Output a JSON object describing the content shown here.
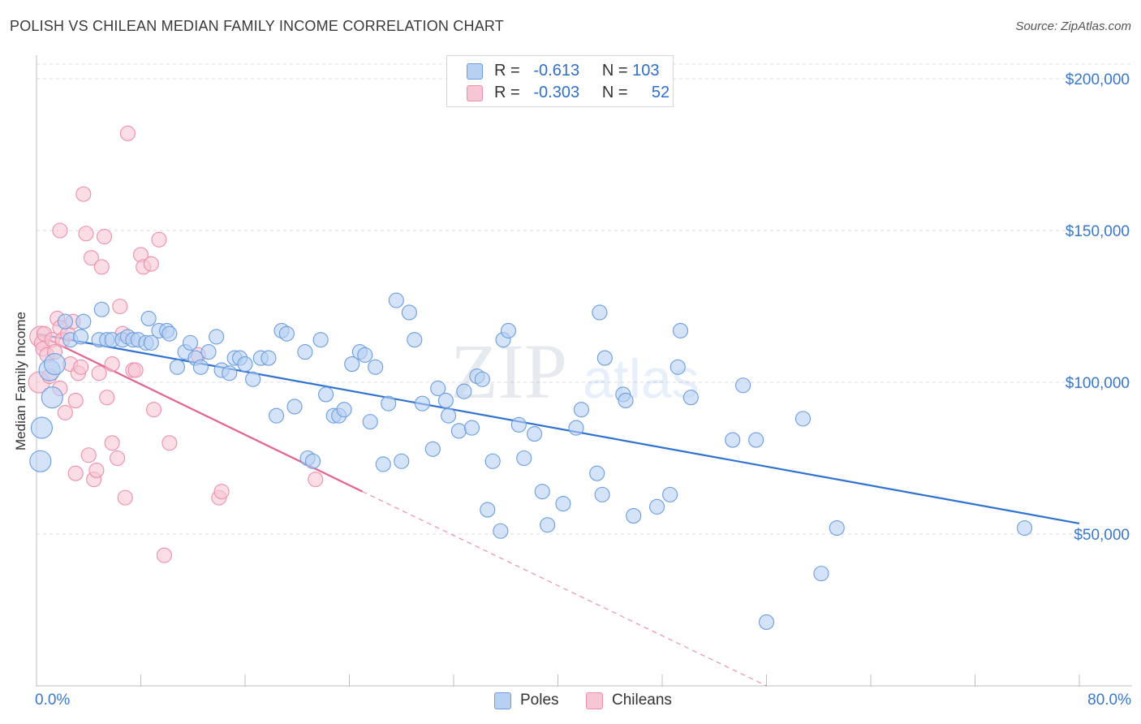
{
  "header": {
    "title": "POLISH VS CHILEAN MEDIAN FAMILY INCOME CORRELATION CHART",
    "source": "Source: ZipAtlas.com"
  },
  "legend": {
    "r_label": "R =",
    "n_label": "N =",
    "rows": [
      {
        "name": "Poles",
        "r": "-0.613",
        "n": "103"
      },
      {
        "name": "Chileans",
        "r": "-0.303",
        "n": "52"
      }
    ]
  },
  "colors": {
    "poles_fill": "#b8d1f3",
    "poles_stroke": "#6b9de0",
    "poles_line": "#2f72d0",
    "chileans_fill": "#f7c6d4",
    "chileans_stroke": "#ec8fab",
    "chileans_line": "#e2658f",
    "tick_text": "#3a78c9",
    "grid": "#dddddd"
  },
  "watermark": {
    "zip": "ZIP",
    "atlas": "atlas"
  },
  "chart_data": {
    "type": "scatter",
    "title": "POLISH VS CHILEAN MEDIAN FAMILY INCOME CORRELATION CHART",
    "xlabel": "",
    "ylabel": "Median Family Income",
    "x_unit": "%",
    "xlim": [
      0,
      80
    ],
    "ylim": [
      0,
      210000
    ],
    "x_ticks_labels": {
      "left": "0.0%",
      "right": "80.0%"
    },
    "y_ticks": [
      {
        "value": 50000,
        "label": "$50,000"
      },
      {
        "value": 100000,
        "label": "$100,000"
      },
      {
        "value": 150000,
        "label": "$150,000"
      },
      {
        "value": 200000,
        "label": "$200,000"
      }
    ],
    "series": [
      {
        "name": "Poles",
        "r": -0.613,
        "n": 103,
        "trend": {
          "x0": 0,
          "y0": 116000,
          "x1": 80,
          "y1": 53500
        },
        "points": [
          [
            0.3,
            74000
          ],
          [
            0.4,
            85000
          ],
          [
            1.0,
            104000
          ],
          [
            1.2,
            95000
          ],
          [
            1.4,
            106000
          ],
          [
            2.2,
            120000
          ],
          [
            2.6,
            114000
          ],
          [
            3.4,
            115000
          ],
          [
            3.6,
            120000
          ],
          [
            4.8,
            114000
          ],
          [
            5.0,
            124000
          ],
          [
            5.4,
            114000
          ],
          [
            5.8,
            114000
          ],
          [
            6.6,
            114000
          ],
          [
            7.0,
            115000
          ],
          [
            7.4,
            114000
          ],
          [
            7.8,
            114000
          ],
          [
            8.4,
            113000
          ],
          [
            8.6,
            121000
          ],
          [
            8.8,
            113000
          ],
          [
            9.4,
            117000
          ],
          [
            10.0,
            117000
          ],
          [
            10.2,
            116000
          ],
          [
            10.8,
            105000
          ],
          [
            11.4,
            110000
          ],
          [
            11.8,
            113000
          ],
          [
            12.2,
            108000
          ],
          [
            12.6,
            105000
          ],
          [
            13.2,
            110000
          ],
          [
            13.8,
            115000
          ],
          [
            14.2,
            104000
          ],
          [
            14.8,
            103000
          ],
          [
            15.2,
            108000
          ],
          [
            15.6,
            108000
          ],
          [
            16.0,
            106000
          ],
          [
            16.6,
            101000
          ],
          [
            17.2,
            108000
          ],
          [
            17.8,
            108000
          ],
          [
            18.4,
            89000
          ],
          [
            18.8,
            117000
          ],
          [
            19.2,
            116000
          ],
          [
            19.8,
            92000
          ],
          [
            20.6,
            110000
          ],
          [
            20.8,
            75000
          ],
          [
            21.2,
            74000
          ],
          [
            21.8,
            114000
          ],
          [
            22.2,
            96000
          ],
          [
            22.8,
            89000
          ],
          [
            23.2,
            89000
          ],
          [
            23.6,
            91000
          ],
          [
            24.2,
            106000
          ],
          [
            24.8,
            110000
          ],
          [
            25.2,
            109000
          ],
          [
            25.6,
            87000
          ],
          [
            26.0,
            105000
          ],
          [
            26.6,
            73000
          ],
          [
            27.0,
            93000
          ],
          [
            27.6,
            127000
          ],
          [
            28.0,
            74000
          ],
          [
            28.6,
            123000
          ],
          [
            29.0,
            114000
          ],
          [
            29.6,
            93000
          ],
          [
            30.4,
            78000
          ],
          [
            30.8,
            98000
          ],
          [
            31.4,
            94000
          ],
          [
            31.6,
            89000
          ],
          [
            32.4,
            84000
          ],
          [
            32.8,
            97000
          ],
          [
            33.4,
            85000
          ],
          [
            33.8,
            102000
          ],
          [
            34.2,
            101000
          ],
          [
            34.6,
            58000
          ],
          [
            35.0,
            74000
          ],
          [
            35.6,
            51000
          ],
          [
            35.8,
            114000
          ],
          [
            36.2,
            117000
          ],
          [
            37.0,
            86000
          ],
          [
            37.4,
            75000
          ],
          [
            38.2,
            83000
          ],
          [
            38.8,
            64000
          ],
          [
            39.2,
            53000
          ],
          [
            40.4,
            60000
          ],
          [
            41.4,
            85000
          ],
          [
            41.8,
            91000
          ],
          [
            43.0,
            70000
          ],
          [
            43.2,
            123000
          ],
          [
            43.4,
            63000
          ],
          [
            43.6,
            108000
          ],
          [
            45.0,
            96000
          ],
          [
            45.2,
            94000
          ],
          [
            45.8,
            56000
          ],
          [
            47.6,
            59000
          ],
          [
            48.6,
            63000
          ],
          [
            49.2,
            105000
          ],
          [
            49.4,
            117000
          ],
          [
            50.2,
            95000
          ],
          [
            53.4,
            81000
          ],
          [
            54.2,
            99000
          ],
          [
            55.2,
            81000
          ],
          [
            56.0,
            21000
          ],
          [
            58.8,
            88000
          ],
          [
            60.2,
            37000
          ],
          [
            61.4,
            52000
          ],
          [
            75.8,
            52000
          ]
        ]
      },
      {
        "name": "Chileans",
        "r": -0.303,
        "n": 52,
        "trend": {
          "x0": 0,
          "y0": 116000,
          "x1": 25,
          "y1": 64000
        },
        "trend_dashed_to": {
          "x": 56,
          "y": 0
        },
        "points": [
          [
            0.2,
            100000
          ],
          [
            0.3,
            115000
          ],
          [
            0.4,
            113000
          ],
          [
            0.5,
            111000
          ],
          [
            0.6,
            116000
          ],
          [
            0.8,
            109000
          ],
          [
            1.0,
            102000
          ],
          [
            1.2,
            114000
          ],
          [
            1.4,
            110000
          ],
          [
            1.6,
            121000
          ],
          [
            1.8,
            98000
          ],
          [
            1.8,
            118000
          ],
          [
            1.8,
            150000
          ],
          [
            2.0,
            114000
          ],
          [
            2.2,
            90000
          ],
          [
            2.4,
            116000
          ],
          [
            2.6,
            106000
          ],
          [
            2.8,
            120000
          ],
          [
            3.0,
            94000
          ],
          [
            3.0,
            70000
          ],
          [
            3.2,
            103000
          ],
          [
            3.4,
            105000
          ],
          [
            3.6,
            162000
          ],
          [
            3.8,
            149000
          ],
          [
            4.0,
            76000
          ],
          [
            4.2,
            141000
          ],
          [
            4.4,
            68000
          ],
          [
            4.6,
            71000
          ],
          [
            4.8,
            103000
          ],
          [
            5.0,
            138000
          ],
          [
            5.2,
            148000
          ],
          [
            5.4,
            95000
          ],
          [
            5.8,
            106000
          ],
          [
            5.8,
            80000
          ],
          [
            6.2,
            75000
          ],
          [
            6.4,
            125000
          ],
          [
            6.6,
            116000
          ],
          [
            6.8,
            62000
          ],
          [
            7.0,
            182000
          ],
          [
            7.4,
            104000
          ],
          [
            7.6,
            104000
          ],
          [
            8.0,
            142000
          ],
          [
            8.2,
            138000
          ],
          [
            8.8,
            139000
          ],
          [
            9.0,
            91000
          ],
          [
            9.4,
            147000
          ],
          [
            9.8,
            43000
          ],
          [
            10.2,
            80000
          ],
          [
            12.4,
            109000
          ],
          [
            14.0,
            62000
          ],
          [
            14.2,
            64000
          ],
          [
            21.4,
            68000
          ]
        ]
      }
    ]
  }
}
